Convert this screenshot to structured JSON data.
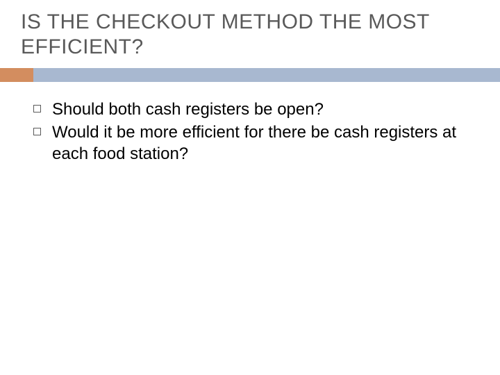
{
  "slide": {
    "title": "IS THE CHECKOUT METHOD THE MOST EFFICIENT?",
    "title_color": "#595959",
    "title_fontsize": 30,
    "accent_colors": {
      "orange": "#d38d5f",
      "blue": "#a8b8d0"
    },
    "accent_bar_height": 20,
    "accent_orange_width": 48,
    "bullets": [
      {
        "text": "Should both cash registers be open?"
      },
      {
        "text": "Would it be more efficient for there be cash registers at each food station?"
      }
    ],
    "bullet_fontsize": 24,
    "bullet_text_color": "#000000",
    "bullet_marker_border": "#595959",
    "background_color": "#ffffff"
  }
}
